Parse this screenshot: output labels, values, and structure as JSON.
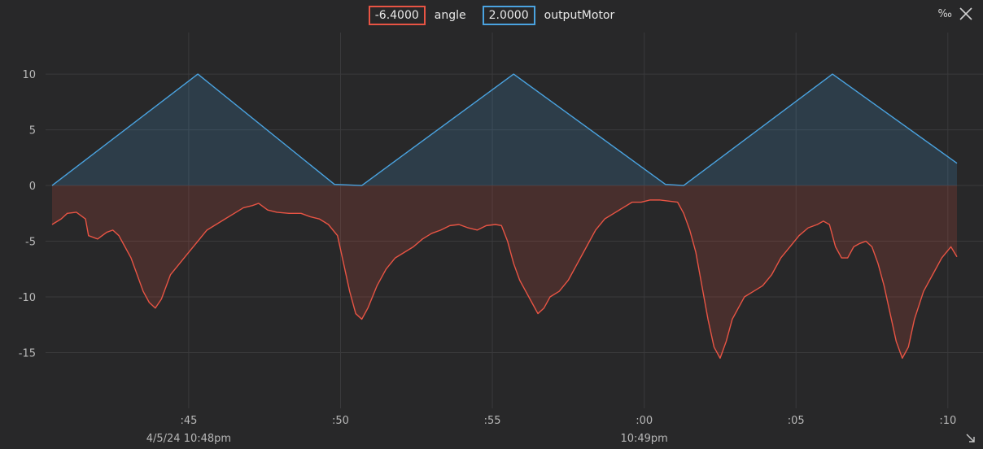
{
  "legend": {
    "angle_value": "-6.4000",
    "angle_name": "angle",
    "motor_value": "2.0000",
    "motor_name": "outputMotor"
  },
  "permille_label": "‰",
  "colors": {
    "angle": "#e85444",
    "motor": "#4aa3e0",
    "background": "#282829",
    "grid": "#3a3a3c"
  },
  "chart_data": {
    "type": "area",
    "title": "",
    "xlabel": "",
    "ylabel": "",
    "ylim": [
      -20,
      13
    ],
    "y_ticks": [
      10,
      5,
      0,
      -5,
      -10,
      -15
    ],
    "x_range_seconds": [
      40.5,
      70.3
    ],
    "x_ticks": [
      {
        "t": 45,
        "label": ":45",
        "sublabel": "4/5/24 10:48pm"
      },
      {
        "t": 50,
        "label": ":50",
        "sublabel": ""
      },
      {
        "t": 55,
        "label": ":55",
        "sublabel": ""
      },
      {
        "t": 60,
        "label": ":00",
        "sublabel": "10:49pm"
      },
      {
        "t": 65,
        "label": ":05",
        "sublabel": ""
      },
      {
        "t": 70,
        "label": ":10",
        "sublabel": ""
      }
    ],
    "grid": true,
    "series": [
      {
        "name": "outputMotor",
        "color": "#4aa3e0",
        "points": [
          [
            40.5,
            0
          ],
          [
            45.3,
            10
          ],
          [
            49.8,
            0.1
          ],
          [
            50.7,
            0
          ],
          [
            55.7,
            10
          ],
          [
            60.7,
            0.1
          ],
          [
            61.3,
            0
          ],
          [
            66.2,
            10
          ],
          [
            70.3,
            2.0
          ]
        ]
      },
      {
        "name": "angle",
        "color": "#e85444",
        "points": [
          [
            40.5,
            -3.5
          ],
          [
            40.8,
            -3
          ],
          [
            41.0,
            -2.5
          ],
          [
            41.3,
            -2.4
          ],
          [
            41.6,
            -3.0
          ],
          [
            41.7,
            -4.5
          ],
          [
            42.0,
            -4.8
          ],
          [
            42.3,
            -4.2
          ],
          [
            42.5,
            -4.0
          ],
          [
            42.7,
            -4.5
          ],
          [
            42.9,
            -5.5
          ],
          [
            43.1,
            -6.5
          ],
          [
            43.3,
            -8.0
          ],
          [
            43.5,
            -9.5
          ],
          [
            43.7,
            -10.5
          ],
          [
            43.9,
            -11.0
          ],
          [
            44.1,
            -10.2
          ],
          [
            44.4,
            -8.0
          ],
          [
            44.7,
            -7.0
          ],
          [
            45.0,
            -6.0
          ],
          [
            45.3,
            -5.0
          ],
          [
            45.6,
            -4.0
          ],
          [
            45.9,
            -3.5
          ],
          [
            46.2,
            -3.0
          ],
          [
            46.5,
            -2.5
          ],
          [
            46.8,
            -2.0
          ],
          [
            47.1,
            -1.8
          ],
          [
            47.3,
            -1.6
          ],
          [
            47.6,
            -2.2
          ],
          [
            47.9,
            -2.4
          ],
          [
            48.3,
            -2.5
          ],
          [
            48.7,
            -2.5
          ],
          [
            49.0,
            -2.8
          ],
          [
            49.3,
            -3.0
          ],
          [
            49.6,
            -3.5
          ],
          [
            49.9,
            -4.5
          ],
          [
            50.1,
            -7.0
          ],
          [
            50.3,
            -9.5
          ],
          [
            50.5,
            -11.5
          ],
          [
            50.7,
            -12.0
          ],
          [
            50.9,
            -11.0
          ],
          [
            51.2,
            -9.0
          ],
          [
            51.5,
            -7.5
          ],
          [
            51.8,
            -6.5
          ],
          [
            52.1,
            -6.0
          ],
          [
            52.4,
            -5.5
          ],
          [
            52.7,
            -4.8
          ],
          [
            53.0,
            -4.3
          ],
          [
            53.3,
            -4.0
          ],
          [
            53.6,
            -3.6
          ],
          [
            53.9,
            -3.5
          ],
          [
            54.2,
            -3.8
          ],
          [
            54.5,
            -4.0
          ],
          [
            54.8,
            -3.6
          ],
          [
            55.1,
            -3.5
          ],
          [
            55.3,
            -3.6
          ],
          [
            55.5,
            -5.0
          ],
          [
            55.7,
            -7.0
          ],
          [
            55.9,
            -8.5
          ],
          [
            56.1,
            -9.5
          ],
          [
            56.3,
            -10.5
          ],
          [
            56.5,
            -11.5
          ],
          [
            56.7,
            -11.0
          ],
          [
            56.9,
            -10.0
          ],
          [
            57.2,
            -9.5
          ],
          [
            57.5,
            -8.5
          ],
          [
            57.8,
            -7.0
          ],
          [
            58.1,
            -5.5
          ],
          [
            58.4,
            -4.0
          ],
          [
            58.7,
            -3.0
          ],
          [
            59.0,
            -2.5
          ],
          [
            59.3,
            -2.0
          ],
          [
            59.6,
            -1.5
          ],
          [
            59.9,
            -1.5
          ],
          [
            60.2,
            -1.3
          ],
          [
            60.5,
            -1.3
          ],
          [
            60.8,
            -1.4
          ],
          [
            61.1,
            -1.5
          ],
          [
            61.3,
            -2.5
          ],
          [
            61.5,
            -4.0
          ],
          [
            61.7,
            -6.0
          ],
          [
            61.9,
            -9.0
          ],
          [
            62.1,
            -12.0
          ],
          [
            62.3,
            -14.5
          ],
          [
            62.5,
            -15.5
          ],
          [
            62.7,
            -14.0
          ],
          [
            62.9,
            -12.0
          ],
          [
            63.1,
            -11.0
          ],
          [
            63.3,
            -10.0
          ],
          [
            63.6,
            -9.5
          ],
          [
            63.9,
            -9.0
          ],
          [
            64.2,
            -8.0
          ],
          [
            64.5,
            -6.5
          ],
          [
            64.8,
            -5.5
          ],
          [
            65.1,
            -4.5
          ],
          [
            65.4,
            -3.8
          ],
          [
            65.7,
            -3.5
          ],
          [
            65.9,
            -3.2
          ],
          [
            66.1,
            -3.5
          ],
          [
            66.3,
            -5.5
          ],
          [
            66.5,
            -6.5
          ],
          [
            66.7,
            -6.5
          ],
          [
            66.9,
            -5.5
          ],
          [
            67.1,
            -5.2
          ],
          [
            67.3,
            -5.0
          ],
          [
            67.5,
            -5.5
          ],
          [
            67.7,
            -7.0
          ],
          [
            67.9,
            -9.0
          ],
          [
            68.1,
            -11.5
          ],
          [
            68.3,
            -14.0
          ],
          [
            68.5,
            -15.5
          ],
          [
            68.7,
            -14.5
          ],
          [
            68.9,
            -12.0
          ],
          [
            69.2,
            -9.5
          ],
          [
            69.5,
            -8.0
          ],
          [
            69.8,
            -6.5
          ],
          [
            70.1,
            -5.5
          ],
          [
            70.3,
            -6.4
          ]
        ]
      }
    ]
  }
}
